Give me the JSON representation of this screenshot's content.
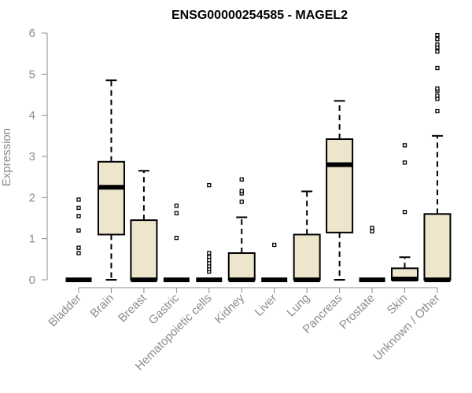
{
  "chart_data": {
    "type": "box",
    "title": "ENSG00000254585 - MAGEL2",
    "ylabel": "Expression",
    "xlabel": "",
    "ylim": [
      0,
      6
    ],
    "yticks": [
      0,
      1,
      2,
      3,
      4,
      5,
      6
    ],
    "categories": [
      "Bladder",
      "Brain",
      "Breast",
      "Gastric",
      "Hematopoietic cells",
      "Kidney",
      "Liver",
      "Lung",
      "Pancreas",
      "Prostate",
      "Skin",
      "Unknown / Other"
    ],
    "boxes": [
      {
        "q1": 0,
        "median": 0,
        "q3": 0,
        "whisker_low": 0,
        "whisker_high": 0,
        "outliers": [
          0.65,
          0.78,
          1.2,
          1.55,
          1.75,
          1.95
        ]
      },
      {
        "q1": 1.1,
        "median": 2.25,
        "q3": 2.87,
        "whisker_low": 0,
        "whisker_high": 4.85,
        "outliers": []
      },
      {
        "q1": 0,
        "median": 0,
        "q3": 1.45,
        "whisker_low": 0,
        "whisker_high": 2.65,
        "outliers": []
      },
      {
        "q1": 0,
        "median": 0,
        "q3": 0,
        "whisker_low": 0,
        "whisker_high": 0,
        "outliers": [
          1.02,
          1.62,
          1.8
        ]
      },
      {
        "q1": 0,
        "median": 0,
        "q3": 0,
        "whisker_low": 0,
        "whisker_high": 0,
        "outliers": [
          0.2,
          0.26,
          0.33,
          0.4,
          0.48,
          0.56,
          0.65,
          2.3
        ]
      },
      {
        "q1": 0,
        "median": 0,
        "q3": 0.65,
        "whisker_low": 0,
        "whisker_high": 1.52,
        "outliers": [
          1.9,
          2.1,
          2.16,
          2.44
        ]
      },
      {
        "q1": 0,
        "median": 0,
        "q3": 0,
        "whisker_low": 0,
        "whisker_high": 0,
        "outliers": [
          0.85
        ]
      },
      {
        "q1": 0,
        "median": 0,
        "q3": 1.1,
        "whisker_low": 0,
        "whisker_high": 2.15,
        "outliers": []
      },
      {
        "q1": 1.15,
        "median": 2.8,
        "q3": 3.42,
        "whisker_low": 0,
        "whisker_high": 4.35,
        "outliers": []
      },
      {
        "q1": 0,
        "median": 0,
        "q3": 0,
        "whisker_low": 0,
        "whisker_high": 0,
        "outliers": [
          1.18,
          1.26
        ]
      },
      {
        "q1": 0,
        "median": 0.02,
        "q3": 0.28,
        "whisker_low": 0,
        "whisker_high": 0.55,
        "outliers": [
          1.65,
          2.85,
          3.27
        ]
      },
      {
        "q1": 0,
        "median": 0,
        "q3": 1.6,
        "whisker_low": 0,
        "whisker_high": 3.5,
        "outliers": [
          4.1,
          4.4,
          4.48,
          4.6,
          4.65,
          5.15,
          5.55,
          5.65,
          5.72,
          5.85,
          5.95
        ]
      }
    ],
    "colors": {
      "box_fill": "#ede6cc",
      "box_stroke": "#000000",
      "axis": "#8c8c8c",
      "tick_label": "#8c8c8c",
      "title": "#000000"
    },
    "grid": false,
    "legend": "none"
  }
}
